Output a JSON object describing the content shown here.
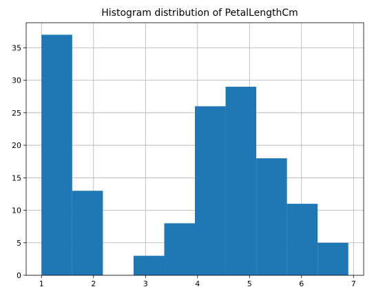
{
  "chart_data": {
    "type": "bar",
    "title": "Histogram distribution of PetalLengthCm",
    "xlabel": "",
    "ylabel": "",
    "bin_edges": [
      1.0,
      1.59,
      2.18,
      2.77,
      3.36,
      3.95,
      4.54,
      5.13,
      5.72,
      6.31,
      6.9
    ],
    "values": [
      37,
      13,
      0,
      3,
      8,
      26,
      29,
      18,
      11,
      5
    ],
    "xlim": [
      0.705,
      7.195
    ],
    "ylim": [
      0,
      38.85
    ],
    "x_ticks": [
      1,
      2,
      3,
      4,
      5,
      6,
      7
    ],
    "y_ticks": [
      0,
      5,
      10,
      15,
      20,
      25,
      30,
      35
    ],
    "grid": true,
    "bar_color": "#1f77b4",
    "grid_color": "#b0b0b0"
  }
}
